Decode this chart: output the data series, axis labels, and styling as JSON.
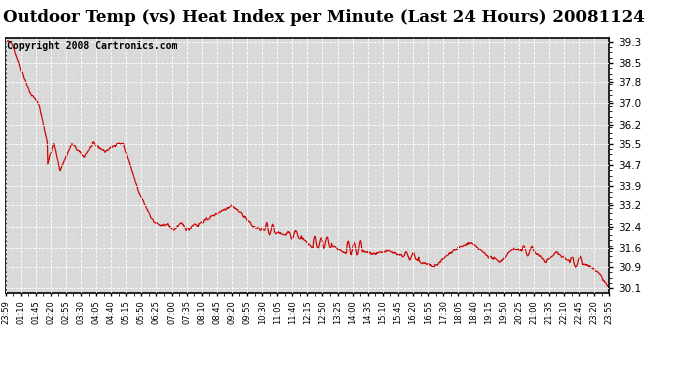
{
  "title": "Outdoor Temp (vs) Heat Index per Minute (Last 24 Hours) 20081124",
  "copyright_text": "Copyright 2008 Cartronics.com",
  "background_color": "#ffffff",
  "plot_bg_color": "#d8d8d8",
  "grid_color": "#ffffff",
  "line_color": "#cc0000",
  "y_ticks": [
    30.1,
    30.9,
    31.6,
    32.4,
    33.2,
    33.9,
    34.7,
    35.5,
    36.2,
    37.0,
    37.8,
    38.5,
    39.3
  ],
  "ylim": [
    29.95,
    39.45
  ],
  "x_tick_labels": [
    "23:59",
    "01:10",
    "01:45",
    "02:20",
    "02:55",
    "03:30",
    "04:05",
    "04:40",
    "05:15",
    "05:50",
    "06:25",
    "07:00",
    "07:35",
    "08:10",
    "08:45",
    "09:20",
    "09:55",
    "10:30",
    "11:05",
    "11:40",
    "12:15",
    "12:50",
    "13:25",
    "14:00",
    "14:35",
    "15:10",
    "15:45",
    "16:20",
    "16:55",
    "17:30",
    "18:05",
    "18:40",
    "19:15",
    "19:50",
    "20:25",
    "21:00",
    "21:35",
    "22:10",
    "22:45",
    "23:20",
    "23:55"
  ],
  "title_fontsize": 12,
  "copyright_fontsize": 7,
  "tick_fontsize": 7.5,
  "xtick_fontsize": 6
}
